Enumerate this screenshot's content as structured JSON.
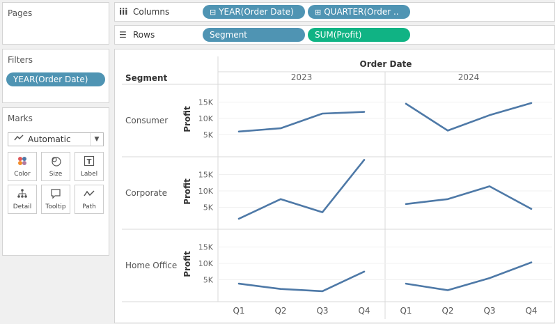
{
  "pages": {
    "title": "Pages"
  },
  "filters": {
    "title": "Filters",
    "pills": [
      "YEAR(Order Date)"
    ]
  },
  "marks": {
    "title": "Marks",
    "mark_type": "Automatic",
    "buttons": [
      {
        "label": "Color",
        "icon": "color-dots-icon"
      },
      {
        "label": "Size",
        "icon": "size-circles-icon"
      },
      {
        "label": "Label",
        "icon": "text-label-icon"
      },
      {
        "label": "Detail",
        "icon": "detail-tree-icon"
      },
      {
        "label": "Tooltip",
        "icon": "speech-bubble-icon"
      },
      {
        "label": "Path",
        "icon": "path-line-icon"
      }
    ]
  },
  "columns_shelf": {
    "label": "Columns",
    "pills": [
      {
        "text": "YEAR(Order Date)",
        "icon": "collapse-minus-icon",
        "color": "#4f94b3"
      },
      {
        "text": "QUARTER(Order ..",
        "icon": "expand-plus-icon",
        "color": "#4f94b3"
      }
    ]
  },
  "rows_shelf": {
    "label": "Rows",
    "pills": [
      {
        "text": "Segment",
        "color": "#4f94b3"
      },
      {
        "text": "SUM(Profit)",
        "color": "#10b384"
      }
    ]
  },
  "chart_data": {
    "type": "line",
    "column_header": "Order Date",
    "row_header": "Segment",
    "years": [
      "2023",
      "2024"
    ],
    "quarters": [
      "Q1",
      "Q2",
      "Q3",
      "Q4"
    ],
    "ylabel": "Profit",
    "yticks": [
      5000,
      10000,
      15000
    ],
    "ytick_labels": [
      "5K",
      "10K",
      "15K"
    ],
    "ylim": [
      0,
      20000
    ],
    "line_color": "#4e79a7",
    "series": [
      {
        "name": "Consumer",
        "values": {
          "2023": [
            6000,
            7000,
            11500,
            12000
          ],
          "2024": [
            14500,
            6300,
            11000,
            14700
          ]
        }
      },
      {
        "name": "Corporate",
        "values": {
          "2023": [
            1500,
            7500,
            3500,
            19500
          ],
          "2024": [
            6000,
            7500,
            11400,
            4500
          ]
        }
      },
      {
        "name": "Home Office",
        "values": {
          "2023": [
            3800,
            2200,
            1500,
            7500
          ],
          "2024": [
            3800,
            1800,
            5500,
            10300
          ]
        }
      }
    ]
  }
}
